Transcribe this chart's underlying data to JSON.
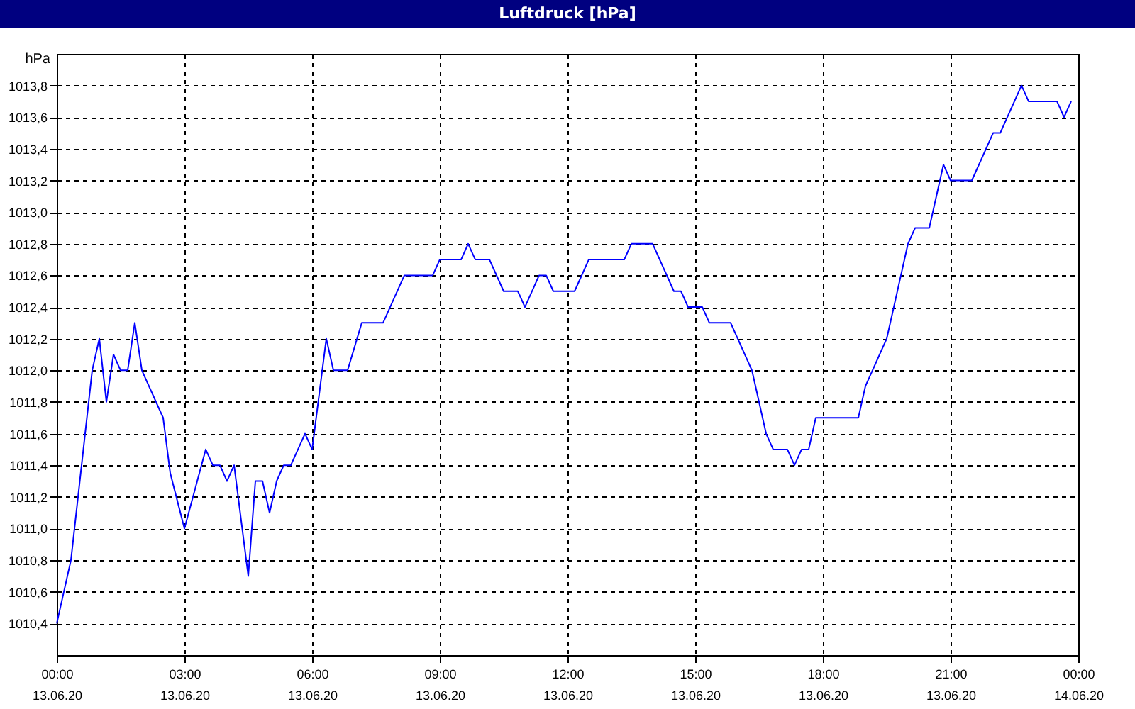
{
  "chart_data": {
    "type": "line",
    "title": "Luftdruck [hPa]",
    "ylabel": "hPa",
    "series": [
      {
        "color": "#0000ff",
        "x": [
          "--06-13T00:00",
          "--06-13T00:20",
          "--06-13T00:50",
          "--06-13T01:00",
          "--06-13T01:10",
          "--06-13T01:20",
          "--06-13T01:30",
          "--06-13T01:40",
          "--06-13T01:50",
          "--06-13T02:00",
          "--06-13T02:30",
          "--06-13T02:40",
          "--06-13T03:00",
          "--06-13T03:30",
          "--06-13T03:40",
          "--06-13T03:50",
          "--06-13T04:00",
          "--06-13T04:10",
          "--06-13T04:30",
          "--06-13T04:40",
          "--06-13T04:50",
          "--06-13T05:00",
          "--06-13T05:10",
          "--06-13T05:20",
          "--06-13T05:30",
          "--06-13T05:50",
          "--06-13T06:00",
          "--06-13T06:20",
          "--06-13T06:30",
          "--06-13T06:50",
          "--06-13T07:10",
          "--06-13T07:40",
          "--06-13T08:10",
          "--06-13T08:50",
          "--06-13T09:00",
          "--06-13T09:30",
          "--06-13T09:40",
          "--06-13T09:50",
          "--06-13T10:10",
          "--06-13T10:30",
          "--06-13T10:50",
          "--06-13T11:00",
          "--06-13T11:20",
          "--06-13T11:30",
          "--06-13T11:40",
          "--06-13T12:10",
          "--06-13T12:30",
          "--06-13T13:20",
          "--06-13T13:30",
          "--06-13T14:00",
          "--06-13T14:30",
          "--06-13T14:40",
          "--06-13T14:50",
          "--06-13T15:10",
          "--06-13T15:20",
          "--06-13T15:50",
          "--06-13T16:20",
          "--06-13T16:40",
          "--06-13T16:50",
          "--06-13T17:10",
          "--06-13T17:20",
          "--06-13T17:30",
          "--06-13T17:40",
          "--06-13T17:50",
          "--06-13T18:50",
          "--06-13T19:00",
          "--06-13T19:30",
          "--06-13T20:00",
          "--06-13T20:10",
          "--06-13T20:30",
          "--06-13T20:50",
          "--06-13T21:00",
          "--06-13T21:30",
          "--06-13T22:00",
          "--06-13T22:10",
          "--06-13T22:40",
          "--06-13T22:50",
          "--06-13T23:30",
          "--06-13T23:40",
          "--06-13T23:50"
        ],
        "values": [
          1010.4,
          1010.8,
          1012.0,
          1012.2,
          1011.8,
          1012.1,
          1012.0,
          1012.0,
          1012.3,
          1012.0,
          1011.7,
          1011.35,
          1011.0,
          1011.5,
          1011.4,
          1011.4,
          1011.3,
          1011.4,
          1010.7,
          1011.3,
          1011.3,
          1011.1,
          1011.3,
          1011.4,
          1011.4,
          1011.6,
          1011.5,
          1012.2,
          1012.0,
          1012.0,
          1012.3,
          1012.3,
          1012.6,
          1012.6,
          1012.7,
          1012.7,
          1012.8,
          1012.7,
          1012.7,
          1012.5,
          1012.5,
          1012.4,
          1012.6,
          1012.6,
          1012.5,
          1012.5,
          1012.7,
          1012.7,
          1012.8,
          1012.8,
          1012.5,
          1012.5,
          1012.4,
          1012.4,
          1012.3,
          1012.3,
          1012.0,
          1011.6,
          1011.5,
          1011.5,
          1011.4,
          1011.5,
          1011.5,
          1011.7,
          1011.7,
          1011.9,
          1012.2,
          1012.8,
          1012.9,
          1012.9,
          1013.3,
          1013.2,
          1013.2,
          1013.5,
          1013.5,
          1013.8,
          1013.7,
          1013.7,
          1013.6,
          1013.7
        ]
      }
    ],
    "xlim": [
      "--06-13T00:00",
      "--06-14T00:00"
    ],
    "xticks": [
      {
        "value": "--06-13T00:00",
        "label": "00:00\n13.06.20"
      },
      {
        "value": "--06-13T03:00",
        "label": "03:00\n13.06.20"
      },
      {
        "value": "--06-13T06:00",
        "label": "06:00\n13.06.20"
      },
      {
        "value": "--06-13T09:00",
        "label": "09:00\n13.06.20"
      },
      {
        "value": "--06-13T12:00",
        "label": "12:00\n13.06.20"
      },
      {
        "value": "--06-13T15:00",
        "label": "15:00\n13.06.20"
      },
      {
        "value": "--06-13T18:00",
        "label": "18:00\n13.06.20"
      },
      {
        "value": "--06-13T21:00",
        "label": "21:00\n13.06.20"
      },
      {
        "value": "--06-14T00:00",
        "label": "00:00\n14.06.20"
      }
    ],
    "ylim": [
      1010.2,
      1014.0
    ],
    "yticks": [
      {
        "value": 1010.4,
        "label": "1010,4"
      },
      {
        "value": 1010.6,
        "label": "1010,6"
      },
      {
        "value": 1010.8,
        "label": "1010,8"
      },
      {
        "value": 1011.0,
        "label": "1011,0"
      },
      {
        "value": 1011.2,
        "label": "1011,2"
      },
      {
        "value": 1011.4,
        "label": "1011,4"
      },
      {
        "value": 1011.6,
        "label": "1011,6"
      },
      {
        "value": 1011.8,
        "label": "1011,8"
      },
      {
        "value": 1012.0,
        "label": "1012,0"
      },
      {
        "value": 1012.2,
        "label": "1012,2"
      },
      {
        "value": 1012.4,
        "label": "1012,4"
      },
      {
        "value": 1012.6,
        "label": "1012,6"
      },
      {
        "value": 1012.8,
        "label": "1012,8"
      },
      {
        "value": 1013.0,
        "label": "1013,0"
      },
      {
        "value": 1013.2,
        "label": "1013,2"
      },
      {
        "value": 1013.4,
        "label": "1013,4"
      },
      {
        "value": 1013.6,
        "label": "1013,6"
      },
      {
        "value": 1013.8,
        "label": "1013,8"
      }
    ],
    "grid": true,
    "marker": "none",
    "line_style": "solid"
  }
}
